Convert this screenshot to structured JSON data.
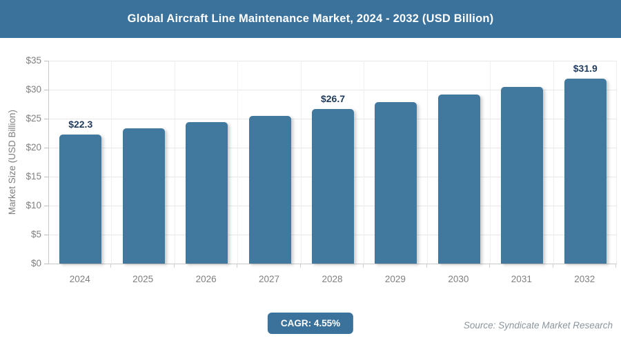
{
  "header": {
    "title": "Global Aircraft Line Maintenance Market, 2024 - 2032 (USD Billion)"
  },
  "chart_data": {
    "type": "bar",
    "title": "Global Aircraft Line Maintenance Market, 2024 - 2032 (USD Billion)",
    "categories": [
      "2024",
      "2025",
      "2026",
      "2027",
      "2028",
      "2029",
      "2030",
      "2031",
      "2032"
    ],
    "values": [
      22.3,
      23.3,
      24.4,
      25.5,
      26.7,
      27.9,
      29.2,
      30.5,
      31.9
    ],
    "data_labels": [
      "$22.3",
      "",
      "",
      "",
      "$26.7",
      "",
      "",
      "",
      "$31.9"
    ],
    "xlabel": "",
    "ylabel": "Market Size (USD Billion)",
    "ylim": [
      0,
      35
    ],
    "ytick_step": 5,
    "ytick_labels": [
      "$0",
      "$5",
      "$10",
      "$15",
      "$20",
      "$25",
      "$30",
      "$35"
    ],
    "legend": "none",
    "grid": "horizontal lines at each $5 plus faint vertical separators between bars"
  },
  "footer": {
    "cagr_label": "CAGR: 4.55%",
    "source": "Source: Syndicate Market Research"
  },
  "colors": {
    "header_bg": "#3A729C",
    "bar": "#41789E",
    "value_label": "#1F3A5C",
    "axis_text": "#7F7F7F",
    "source_text": "#8A959C",
    "badge_bg": "#3A729C"
  }
}
